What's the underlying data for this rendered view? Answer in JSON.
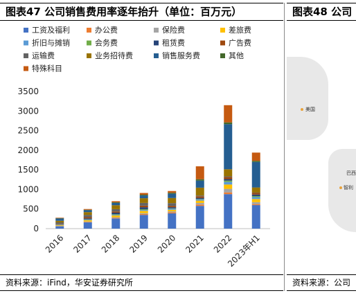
{
  "left_panel": {
    "title": "图表47 公司销售费用率逐年抬升（单位：百万元）",
    "source": "资料来源：iFind，华安证券研究所"
  },
  "right_panel": {
    "title": "图表48 公司",
    "source": "资料来源：公司",
    "map_labels": [
      "美国",
      "巴西",
      "智利"
    ]
  },
  "chart_data": {
    "type": "bar",
    "stacked": true,
    "categories": [
      "2016",
      "2017",
      "2018",
      "2019",
      "2020",
      "2021",
      "2022",
      "2023年H1"
    ],
    "ylim": [
      0,
      3500
    ],
    "yticks": [
      0,
      500,
      1000,
      1500,
      2000,
      2500,
      3000,
      3500
    ],
    "grid": false,
    "legend_position": "top",
    "series": [
      {
        "name": "工资及福利",
        "color": "#4472C4",
        "values": [
          60,
          160,
          260,
          350,
          390,
          580,
          880,
          600
        ]
      },
      {
        "name": "办公费",
        "color": "#ED7D31",
        "values": [
          6,
          12,
          16,
          22,
          26,
          35,
          45,
          25
        ]
      },
      {
        "name": "保险费",
        "color": "#A5A5A5",
        "values": [
          6,
          12,
          16,
          22,
          24,
          40,
          90,
          50
        ]
      },
      {
        "name": "差旅费",
        "color": "#FFC000",
        "values": [
          15,
          30,
          45,
          60,
          40,
          60,
          110,
          80
        ]
      },
      {
        "name": "折旧与摊销",
        "color": "#5B9BD5",
        "values": [
          6,
          12,
          16,
          22,
          26,
          30,
          70,
          50
        ]
      },
      {
        "name": "会务费",
        "color": "#70AD47",
        "values": [
          6,
          10,
          14,
          20,
          10,
          10,
          30,
          25
        ]
      },
      {
        "name": "租赁费",
        "color": "#264478",
        "values": [
          10,
          25,
          40,
          50,
          30,
          30,
          40,
          40
        ]
      },
      {
        "name": "广告费",
        "color": "#9E480E",
        "values": [
          10,
          30,
          30,
          40,
          35,
          40,
          50,
          40
        ]
      },
      {
        "name": "运输费",
        "color": "#636363",
        "values": [
          40,
          60,
          60,
          70,
          70,
          20,
          20,
          10
        ]
      },
      {
        "name": "业务招待费",
        "color": "#997300",
        "values": [
          40,
          70,
          100,
          120,
          130,
          200,
          180,
          130
        ]
      },
      {
        "name": "销售服务费",
        "color": "#255E91",
        "values": [
          60,
          50,
          60,
          70,
          110,
          180,
          1150,
          650
        ]
      },
      {
        "name": "其他",
        "color": "#43682B",
        "values": [
          10,
          10,
          15,
          20,
          25,
          35,
          45,
          30
        ]
      },
      {
        "name": "特殊科目",
        "color": "#C55A11",
        "values": [
          11,
          19,
          28,
          44,
          44,
          330,
          440,
          210
        ]
      }
    ]
  }
}
